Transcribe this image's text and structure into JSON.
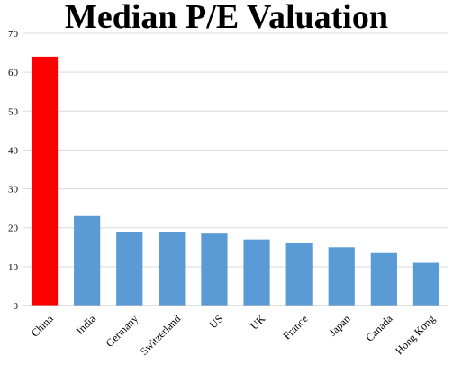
{
  "chart_data": {
    "type": "bar",
    "title": "Median P/E Valuation",
    "categories": [
      "China",
      "India",
      "Germany",
      "Switzerland",
      "US",
      "UK",
      "France",
      "Japan",
      "Canada",
      "Hong Kong"
    ],
    "values": [
      64,
      23,
      19,
      19,
      18.5,
      17,
      16,
      15,
      13.5,
      11
    ],
    "ylim": [
      0,
      70
    ],
    "yticks": [
      0,
      10,
      20,
      30,
      40,
      50,
      60,
      70
    ],
    "grid": true,
    "legend": "none",
    "colors": {
      "highlight": "#ff0000",
      "default": "#5b9bd5"
    },
    "highlight_index": 0
  }
}
